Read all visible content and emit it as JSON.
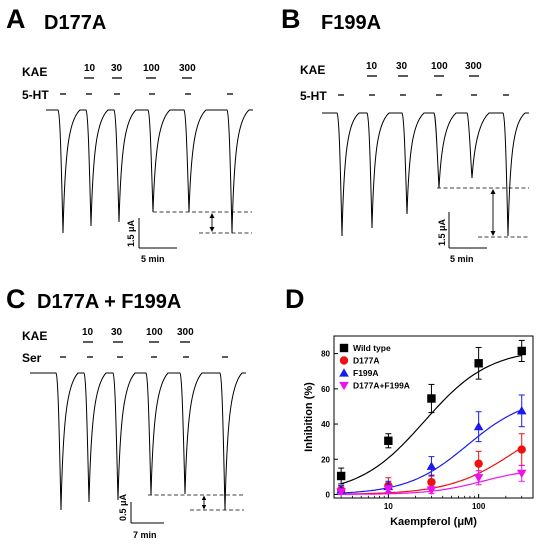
{
  "panels": {
    "A": {
      "letter": "A",
      "title": "D177A",
      "row1": "KAE",
      "row2": "5-HT",
      "concs": [
        "10",
        "30",
        "100",
        "300"
      ],
      "scale_y": "1.5 μA",
      "scale_x": "5 min"
    },
    "B": {
      "letter": "B",
      "title": "F199A",
      "row1": "KAE",
      "row2": "5-HT",
      "concs": [
        "10",
        "30",
        "100",
        "300"
      ],
      "scale_y": "1.5 μA",
      "scale_x": "5 min"
    },
    "C": {
      "letter": "C",
      "title": "D177A + F199A",
      "row1": "KAE",
      "row2": "Ser",
      "concs": [
        "10",
        "30",
        "100",
        "300"
      ],
      "scale_y": "0.5 μA",
      "scale_x": "7 min"
    },
    "D": {
      "letter": "D"
    }
  },
  "chart_data": {
    "type": "scatter",
    "xlabel": "Kaempferol (μM)",
    "ylabel": "Inhibition (%)",
    "xscale": "log",
    "xlim": [
      2.5,
      400
    ],
    "ylim": [
      -2,
      90
    ],
    "xticks": [
      "10",
      "100"
    ],
    "yticks": [
      "0",
      "20",
      "40",
      "60",
      "80"
    ],
    "legend_position": "top-left",
    "x": [
      3,
      10,
      30,
      100,
      300
    ],
    "series": [
      {
        "name": "Wild type",
        "color": "#000000",
        "marker": "square",
        "values": [
          10.5,
          30.5,
          54.5,
          74.5,
          81.5
        ],
        "errors": [
          4.5,
          4,
          8,
          9,
          6
        ],
        "fit": {
          "max": 83,
          "ec50": 25,
          "hill": 1.2
        }
      },
      {
        "name": "D177A",
        "color": "#ee1111",
        "marker": "circle",
        "values": [
          2.5,
          5,
          7,
          17.5,
          25.5
        ],
        "errors": [
          2.5,
          4.5,
          4,
          7,
          9
        ],
        "fit": {
          "max": 48,
          "ec50": 250,
          "hill": 1.2
        }
      },
      {
        "name": "F199A",
        "color": "#1a1aee",
        "marker": "triangle-up",
        "values": [
          2.5,
          4.5,
          16,
          38.5,
          47.5
        ],
        "errors": [
          2.5,
          3,
          5.5,
          8.5,
          9
        ],
        "fit": {
          "max": 56,
          "ec50": 75,
          "hill": 1.3
        }
      },
      {
        "name": "D177A+F199A",
        "color": "#ee11ee",
        "marker": "triangle-down",
        "values": [
          1.5,
          3,
          2.5,
          9.5,
          12
        ],
        "errors": [
          1.5,
          2,
          2,
          4,
          4.5
        ],
        "fit": {
          "max": 15,
          "ec50": 110,
          "hill": 1.5
        }
      }
    ]
  }
}
